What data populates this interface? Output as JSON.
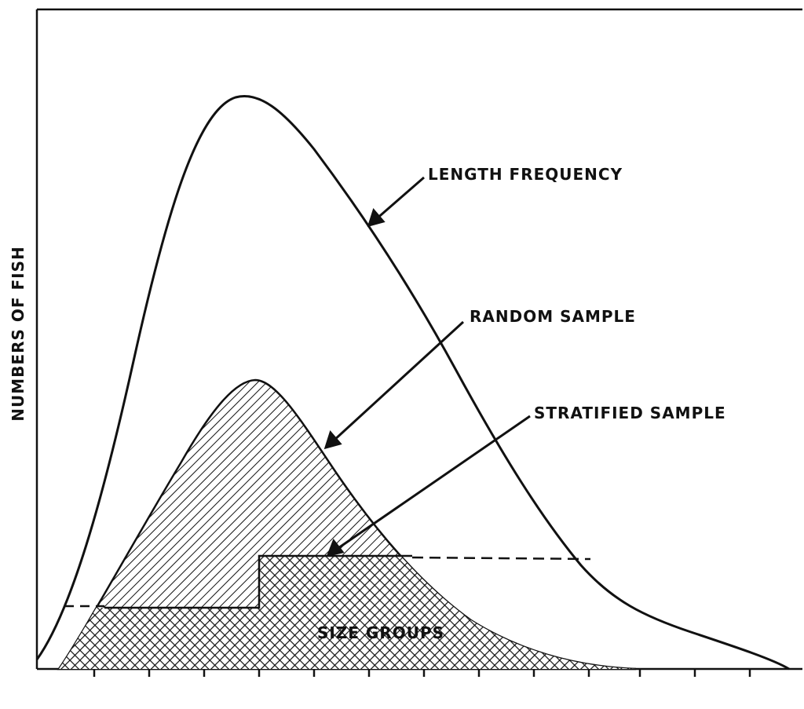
{
  "labels": {
    "length_frequency": "LENGTH FREQUENCY",
    "random_sample": "RANDOM SAMPLE",
    "stratified_sample": "STRATIFIED SAMPLE"
  },
  "axes": {
    "y_label": "NUMBERS OF FISH",
    "x_label": "SIZE GROUPS"
  }
}
